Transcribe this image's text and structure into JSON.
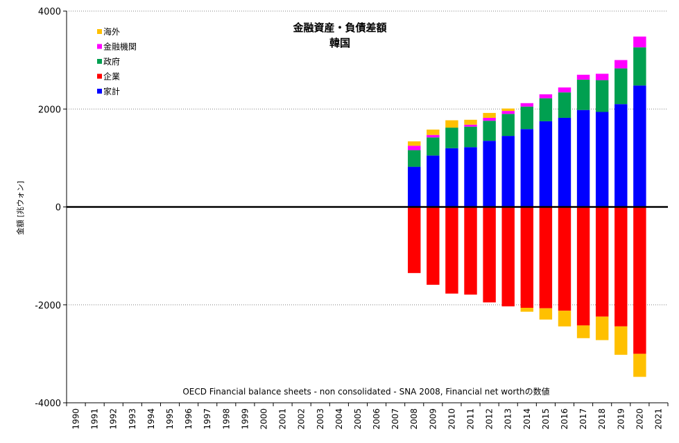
{
  "chart_data": {
    "type": "bar",
    "stacked": true,
    "title": "金融資産・負債差額",
    "subtitle": "韓国",
    "ylabel": "金額 [兆ウォン]",
    "note": "OECD Financial balance sheets - non consolidated - SNA 2008, Financial net worthの数値",
    "ylim": [
      -4000,
      4000
    ],
    "yticks": [
      4000,
      2000,
      0,
      -2000,
      -4000
    ],
    "ytick_labels": [
      "4000",
      "2000",
      "0",
      "-2000",
      "-4000"
    ],
    "grid": true,
    "legend_position": "top-left",
    "categories": [
      "1990",
      "1991",
      "1992",
      "1993",
      "1994",
      "1995",
      "1996",
      "1997",
      "1998",
      "1999",
      "2000",
      "2001",
      "2002",
      "2003",
      "2004",
      "2005",
      "2006",
      "2007",
      "2008",
      "2009",
      "2010",
      "2011",
      "2012",
      "2013",
      "2014",
      "2015",
      "2016",
      "2017",
      "2018",
      "2019",
      "2020",
      "2021"
    ],
    "legend": [
      {
        "name": "海外",
        "color": "#FFC000"
      },
      {
        "name": "金融機関",
        "color": "#FF00FF"
      },
      {
        "name": "政府",
        "color": "#00A050"
      },
      {
        "name": "企業",
        "color": "#FF0000"
      },
      {
        "name": "家計",
        "color": "#0000FF"
      }
    ],
    "series": [
      {
        "name": "家計",
        "color": "#0000FF",
        "values": [
          null,
          null,
          null,
          null,
          null,
          null,
          null,
          null,
          null,
          null,
          null,
          null,
          null,
          null,
          null,
          null,
          null,
          null,
          820,
          1050,
          1200,
          1220,
          1350,
          1450,
          1590,
          1750,
          1820,
          1980,
          1940,
          2100,
          2480,
          null
        ]
      },
      {
        "name": "政府",
        "color": "#00A050",
        "values": [
          null,
          null,
          null,
          null,
          null,
          null,
          null,
          null,
          null,
          null,
          null,
          null,
          null,
          null,
          null,
          null,
          null,
          null,
          340,
          370,
          420,
          420,
          410,
          450,
          460,
          470,
          520,
          620,
          650,
          730,
          780,
          null
        ]
      },
      {
        "name": "金融機関",
        "color": "#FF00FF",
        "values": [
          null,
          null,
          null,
          null,
          null,
          null,
          null,
          null,
          null,
          null,
          null,
          null,
          null,
          null,
          null,
          null,
          null,
          null,
          90,
          50,
          0,
          40,
          60,
          60,
          70,
          80,
          100,
          100,
          130,
          170,
          220,
          null
        ]
      },
      {
        "name": "海外",
        "color": "#FFC000",
        "values": [
          null,
          null,
          null,
          null,
          null,
          null,
          null,
          null,
          null,
          null,
          null,
          null,
          null,
          null,
          null,
          null,
          null,
          null,
          90,
          110,
          150,
          100,
          100,
          50,
          0,
          0,
          0,
          0,
          0,
          0,
          0,
          null
        ]
      },
      {
        "name": "企業",
        "color": "#FF0000",
        "values": [
          null,
          null,
          null,
          null,
          null,
          null,
          null,
          null,
          null,
          null,
          null,
          null,
          null,
          null,
          null,
          null,
          null,
          null,
          -1350,
          -1590,
          -1770,
          -1790,
          -1950,
          -2030,
          -2060,
          -2070,
          -2120,
          -2420,
          -2240,
          -2440,
          -3000,
          null
        ]
      },
      {
        "name": "海外",
        "color": "#FFC000",
        "values": [
          null,
          null,
          null,
          null,
          null,
          null,
          null,
          null,
          null,
          null,
          null,
          null,
          null,
          null,
          null,
          null,
          null,
          null,
          0,
          0,
          0,
          0,
          0,
          0,
          -80,
          -230,
          -320,
          -260,
          -480,
          -580,
          -470,
          null
        ]
      }
    ]
  }
}
